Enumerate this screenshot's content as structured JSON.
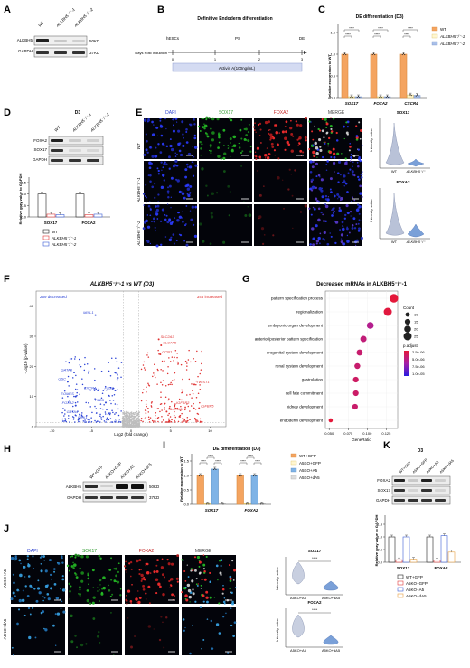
{
  "panels": {
    "a": "A",
    "b": "B",
    "c": "C",
    "d": "D",
    "e": "E",
    "f": "F",
    "g": "G",
    "h": "H",
    "i": "I",
    "j": "J",
    "k": "K"
  },
  "colors": {
    "wt": "#f4a460",
    "ko1": "#fff6d0",
    "ko2": "#a8bfe8",
    "up": "#e03030",
    "down": "#2b43d6",
    "ns": "#bdbdbd",
    "dapi": "#2a3fd0",
    "sox17": "#2e9a2e",
    "foxa2": "#c62828"
  },
  "a": {
    "lanes": [
      "WT",
      "ALKBH5⁻/⁻-1",
      "ALKBH5⁻/⁻-2"
    ],
    "rows": [
      "ALKBH5",
      "GAPDH"
    ],
    "kd": [
      "50KD",
      "37KD"
    ]
  },
  "b": {
    "title": "Definitive Endoderm differentiation",
    "stages": [
      "hESCs",
      "PS",
      "DE"
    ],
    "timeline_label": "Days Post Induction",
    "days": [
      "0",
      "1",
      "2",
      "3"
    ],
    "treatment": "Activin A(100ng/mL)"
  },
  "c": {
    "title": "DE differentiation (D3)",
    "ylabel": "Relative expression to WT"
  },
  "d": {
    "title": "D3",
    "lanes": [
      "WT",
      "ALKBH5⁻/⁻-1",
      "ALKBH5⁻/⁻-2"
    ],
    "rows": [
      "FOXA2",
      "SOX17",
      "GAPDH"
    ],
    "ylabel": "Relative gray value to GAPDH"
  },
  "e": {
    "cols": [
      "DAPI",
      "SOX17",
      "FOXA2",
      "MERGE"
    ],
    "rows": [
      "WT",
      "ALKBH5⁻/⁻-1",
      "ALKBH5⁻/⁻-2"
    ],
    "violin_titles": [
      "SOX17",
      "FOXA2"
    ],
    "violin_ylabel": "Intensity value",
    "violin_x": [
      "WT",
      "ALKBH5⁻/⁻"
    ]
  },
  "f": {
    "decreased": "259 decreased",
    "increased": "346 increased"
  },
  "g": {
    "size_title": "Count",
    "color_title": "p.adjust",
    "sizes": [
      "10",
      "15",
      "20",
      "25"
    ],
    "color_ticks": [
      "2.5e-06",
      "5.0e-06",
      "7.5e-06",
      "1.0e-05"
    ]
  },
  "h": {
    "lanes": [
      "WT+GFP",
      "A5KO+GFP",
      "A5KO+A5",
      "A5KO+dA5"
    ],
    "rows": [
      "ALKBH5",
      "GAPDH"
    ],
    "kd": [
      "50KD",
      "37KD"
    ]
  },
  "j": {
    "cols": [
      "DAPI",
      "SOX17",
      "FOXA2",
      "MERGE"
    ],
    "rows": [
      "A5KO+A5",
      "A5KO+dA5"
    ],
    "violin_titles": [
      "SOX17",
      "FOXA2"
    ],
    "violin_ylabel": "Intensity value",
    "violin_x": [
      "A5KO+A5",
      "A5KO+dA5"
    ],
    "sig": "****"
  },
  "k": {
    "title": "D3",
    "lanes": [
      "WT+GFP",
      "A5KO+GFP",
      "A5KO+A5",
      "A5KO+dA5"
    ],
    "rows": [
      "FOXA2",
      "SOX17",
      "GAPDH"
    ]
  },
  "chart_data": [
    {
      "type": "bar",
      "title": "DE differentiation (D3)",
      "ylabel": "Relative expression to WT",
      "categories": [
        "SOX17",
        "FOXA2",
        "CXCR4"
      ],
      "ylim": [
        0,
        1.5
      ],
      "yticks": [
        "0.0",
        "0.5",
        "1.0",
        "1.5"
      ],
      "series": [
        {
          "name": "WT",
          "values": [
            1.0,
            1.0,
            1.0
          ]
        },
        {
          "name": "ALKBH5⁻/⁻-1",
          "values": [
            0.02,
            0.02,
            0.06
          ]
        },
        {
          "name": "ALKBH5⁻/⁻-2",
          "values": [
            0.02,
            0.02,
            0.05
          ]
        }
      ],
      "significance": "****"
    },
    {
      "type": "bar",
      "ylabel": "Relative gray value to GAPDH",
      "categories": [
        "SOX17",
        "FOXA2"
      ],
      "ylim": [
        0,
        1.5
      ],
      "yticks": [
        "0.0",
        "0.5",
        "1.0",
        "1.5"
      ],
      "series": [
        {
          "name": "WT",
          "values": [
            1.0,
            1.0
          ]
        },
        {
          "name": "ALKBH5⁻/⁻-1",
          "values": [
            0.12,
            0.1
          ]
        },
        {
          "name": "ALKBH5⁻/⁻-2",
          "values": [
            0.1,
            0.12
          ]
        }
      ]
    },
    {
      "type": "scatter",
      "title": "ALKBH5⁻/⁻-1 vs WT (D3)",
      "xlabel": "Log2 (fold change)",
      "ylabel": "-Log10 (p-value)",
      "xlim": [
        -12,
        12
      ],
      "ylim": [
        0,
        45
      ],
      "xticks": [
        "-10",
        "-5",
        "0",
        "5",
        "10"
      ],
      "yticks": [
        "0",
        "10",
        "20",
        "30",
        "40"
      ],
      "genes": [
        {
          "name": "MIXL1",
          "x": -4.5,
          "y": 37,
          "dir": "down"
        },
        {
          "name": "GATA6",
          "x": -7.2,
          "y": 18,
          "dir": "down"
        },
        {
          "name": "GSC",
          "x": -8.0,
          "y": 15,
          "dir": "down"
        },
        {
          "name": "CXCR4",
          "x": -4.2,
          "y": 12,
          "dir": "down"
        },
        {
          "name": "FZD8",
          "x": -2.0,
          "y": 12,
          "dir": "down"
        },
        {
          "name": "EOMES",
          "x": -7.0,
          "y": 10,
          "dir": "down"
        },
        {
          "name": "FZD5",
          "x": -3.2,
          "y": 8,
          "dir": "down"
        },
        {
          "name": "FOXA2",
          "x": -7.0,
          "y": 7,
          "dir": "down"
        },
        {
          "name": "GATA4",
          "x": -6.5,
          "y": 4,
          "dir": "down"
        },
        {
          "name": "DKK1",
          "x": -5.3,
          "y": 2.2,
          "dir": "down"
        },
        {
          "name": "SLC2A3",
          "x": 3.5,
          "y": 29,
          "dir": "up"
        },
        {
          "name": "SLC7A5",
          "x": 3.8,
          "y": 27,
          "dir": "up"
        },
        {
          "name": "CCN1",
          "x": 3.7,
          "y": 24,
          "dir": "up"
        },
        {
          "name": "TWIST1",
          "x": 8.0,
          "y": 14,
          "dir": "up"
        },
        {
          "name": "IGFBP3",
          "x": 5.5,
          "y": 7,
          "dir": "up"
        },
        {
          "name": "IGFBP5",
          "x": 8.6,
          "y": 6,
          "dir": "up"
        },
        {
          "name": "SLC7A11",
          "x": 4.5,
          "y": 5,
          "dir": "up"
        }
      ]
    },
    {
      "type": "scatter",
      "title": "Decreased mRNAs in ALKBH5⁻/⁻-1",
      "xlabel": "GeneRatio",
      "xlim": [
        0.045,
        0.14
      ],
      "xticks": [
        0.05,
        0.075,
        0.1,
        0.125
      ],
      "xtick_labels": [
        "0.050",
        "0.075",
        "0.100",
        "0.125"
      ],
      "terms": [
        {
          "name": "pattern specification process",
          "ratio": 0.135,
          "count": 27,
          "padj": 2e-07
        },
        {
          "name": "regionalization",
          "ratio": 0.127,
          "count": 25,
          "padj": 4e-07
        },
        {
          "name": "embryonic organ development",
          "ratio": 0.104,
          "count": 20,
          "padj": 4e-06
        },
        {
          "name": "anterior/posterior pattern specification",
          "ratio": 0.095,
          "count": 18,
          "padj": 3e-06
        },
        {
          "name": "urogenital system development",
          "ratio": 0.09,
          "count": 17,
          "padj": 2.5e-06
        },
        {
          "name": "renal system development",
          "ratio": 0.087,
          "count": 16,
          "padj": 2.5e-06
        },
        {
          "name": "gastrulation",
          "ratio": 0.085,
          "count": 15,
          "padj": 2e-06
        },
        {
          "name": "cell fate commitment",
          "ratio": 0.085,
          "count": 15,
          "padj": 2.2e-06
        },
        {
          "name": "kidney development",
          "ratio": 0.084,
          "count": 15,
          "padj": 2.4e-06
        },
        {
          "name": "endoderm development",
          "ratio": 0.052,
          "count": 9,
          "padj": 2e-07
        }
      ]
    },
    {
      "type": "bar",
      "title": "DE differentiation (D3)",
      "ylabel": "Relative expression to WT",
      "categories": [
        "SOX17",
        "FOXA2"
      ],
      "ylim": [
        0,
        1.5
      ],
      "yticks": [
        "0.0",
        "0.5",
        "1.0",
        "1.5"
      ],
      "series": [
        {
          "name": "WT+GFP",
          "values": [
            1.0,
            1.0
          ]
        },
        {
          "name": "A5KO+GFP",
          "values": [
            0.02,
            0.02
          ]
        },
        {
          "name": "A5KO+A5",
          "values": [
            1.22,
            1.0
          ]
        },
        {
          "name": "A5KO+dA5",
          "values": [
            0.02,
            0.02
          ]
        }
      ],
      "significance": "****"
    },
    {
      "type": "bar",
      "ylabel": "Relative gray value to GAPDH",
      "categories": [
        "SOX17",
        "FOXA2"
      ],
      "ylim": [
        0,
        1.5
      ],
      "yticks": [
        "0.0",
        "0.5",
        "1.0",
        "1.5"
      ],
      "series": [
        {
          "name": "WT+GFP",
          "values": [
            1.0,
            1.0
          ]
        },
        {
          "name": "A5KO+GFP",
          "values": [
            0.1,
            0.08
          ]
        },
        {
          "name": "A5KO+A5",
          "values": [
            1.0,
            1.05
          ]
        },
        {
          "name": "A5KO+dA5",
          "values": [
            0.12,
            0.4
          ]
        }
      ]
    }
  ]
}
